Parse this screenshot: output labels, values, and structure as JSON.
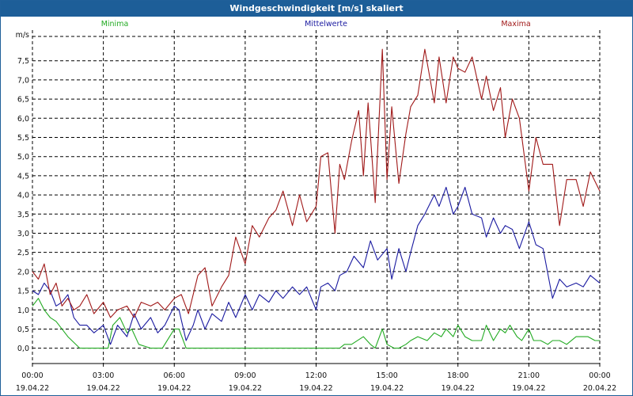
{
  "chart_data": {
    "type": "line",
    "title": "Windgeschwindigkeit [m/s] skaliert",
    "ylabel": "m/s",
    "xlabel": "",
    "ylim": [
      -0.4,
      8.3
    ],
    "y_ticks": [
      "7,5",
      "7,0",
      "6,5",
      "6,0",
      "5,5",
      "5,0",
      "4,5",
      "4,0",
      "3,5",
      "3,0",
      "2,5",
      "2,0",
      "1,5",
      "1,0",
      "0,5",
      "0,0"
    ],
    "y_tick_values": [
      7.5,
      7.0,
      6.5,
      6.0,
      5.5,
      5.0,
      4.5,
      4.0,
      3.5,
      3.0,
      2.5,
      2.0,
      1.5,
      1.0,
      0.5,
      0.0
    ],
    "xlim": [
      0,
      24
    ],
    "x_ticks": [
      {
        "time": "00:00",
        "date": "19.04.22",
        "hour": 0
      },
      {
        "time": "03:00",
        "date": "19.04.22",
        "hour": 3
      },
      {
        "time": "06:00",
        "date": "19.04.22",
        "hour": 6
      },
      {
        "time": "09:00",
        "date": "19.04.22",
        "hour": 9
      },
      {
        "time": "12:00",
        "date": "19.04.22",
        "hour": 12
      },
      {
        "time": "15:00",
        "date": "19.04.22",
        "hour": 15
      },
      {
        "time": "18:00",
        "date": "19.04.22",
        "hour": 18
      },
      {
        "time": "21:00",
        "date": "19.04.22",
        "hour": 21
      },
      {
        "time": "00:00",
        "date": "20.04.22",
        "hour": 24
      }
    ],
    "grid": true,
    "series": [
      {
        "name": "Minima",
        "color": "#22aa22",
        "x": [
          0,
          0.25,
          0.5,
          0.75,
          1,
          1.5,
          2,
          2.5,
          3,
          3.2,
          3.4,
          3.7,
          4,
          4.2,
          4.5,
          5,
          5.5,
          5.8,
          6,
          6.2,
          6.5,
          7,
          8,
          9,
          10,
          11,
          12,
          12.5,
          13,
          13.2,
          13.5,
          14,
          14.3,
          14.5,
          14.8,
          15,
          15.3,
          15.5,
          15.8,
          16,
          16.3,
          16.7,
          17,
          17.3,
          17.5,
          17.8,
          18,
          18.3,
          18.6,
          19,
          19.2,
          19.5,
          19.8,
          20,
          20.2,
          20.5,
          20.7,
          21,
          21.2,
          21.5,
          21.8,
          22,
          22.3,
          22.6,
          23,
          23.5,
          23.8,
          24
        ],
        "values": [
          1.1,
          1.3,
          1.0,
          0.8,
          0.7,
          0.3,
          0.0,
          0.0,
          0.0,
          0.0,
          0.6,
          0.8,
          0.4,
          0.5,
          0.1,
          0.0,
          0.0,
          0.3,
          0.5,
          0.5,
          0.0,
          0.0,
          0.0,
          0.0,
          0.0,
          0.0,
          0.0,
          0.0,
          0.0,
          0.1,
          0.1,
          0.3,
          0.1,
          0.0,
          0.5,
          0.1,
          0.0,
          0.0,
          0.1,
          0.2,
          0.3,
          0.2,
          0.4,
          0.3,
          0.5,
          0.3,
          0.6,
          0.3,
          0.2,
          0.2,
          0.6,
          0.2,
          0.5,
          0.4,
          0.6,
          0.3,
          0.2,
          0.5,
          0.2,
          0.2,
          0.1,
          0.2,
          0.2,
          0.1,
          0.3,
          0.3,
          0.2,
          0.2
        ]
      },
      {
        "name": "Mittelwerte",
        "color": "#1a1aa0",
        "x": [
          0,
          0.25,
          0.5,
          0.75,
          1,
          1.25,
          1.5,
          1.75,
          2,
          2.3,
          2.6,
          3,
          3.3,
          3.6,
          4,
          4.3,
          4.6,
          5,
          5.3,
          5.6,
          6,
          6.2,
          6.5,
          6.8,
          7,
          7.3,
          7.6,
          8,
          8.3,
          8.6,
          9,
          9.3,
          9.6,
          10,
          10.3,
          10.6,
          11,
          11.3,
          11.6,
          12,
          12.2,
          12.5,
          12.8,
          13,
          13.3,
          13.6,
          14,
          14.3,
          14.6,
          15,
          15.2,
          15.5,
          15.8,
          16,
          16.3,
          16.6,
          17,
          17.2,
          17.5,
          17.8,
          18,
          18.3,
          18.6,
          19,
          19.2,
          19.5,
          19.8,
          20,
          20.3,
          20.6,
          21,
          21.3,
          21.6,
          22,
          22.3,
          22.6,
          23,
          23.3,
          23.6,
          24
        ],
        "values": [
          1.5,
          1.4,
          1.7,
          1.5,
          1.1,
          1.2,
          1.4,
          0.8,
          0.6,
          0.6,
          0.4,
          0.6,
          0.1,
          0.6,
          0.3,
          0.9,
          0.5,
          0.8,
          0.4,
          0.6,
          1.1,
          1.0,
          0.2,
          0.6,
          1.0,
          0.5,
          0.9,
          0.7,
          1.2,
          0.8,
          1.4,
          1.0,
          1.4,
          1.2,
          1.5,
          1.3,
          1.6,
          1.4,
          1.6,
          1.0,
          1.6,
          1.7,
          1.5,
          1.9,
          2.0,
          2.4,
          2.1,
          2.8,
          2.3,
          2.6,
          1.8,
          2.6,
          2.0,
          2.5,
          3.2,
          3.5,
          4.0,
          3.7,
          4.2,
          3.5,
          3.7,
          4.2,
          3.5,
          3.4,
          2.9,
          3.4,
          3.0,
          3.2,
          3.1,
          2.6,
          3.3,
          2.7,
          2.6,
          1.3,
          1.8,
          1.6,
          1.7,
          1.6,
          1.9,
          1.7
        ]
      },
      {
        "name": "Maxima",
        "color": "#a01818",
        "x": [
          0,
          0.25,
          0.5,
          0.75,
          1,
          1.25,
          1.5,
          1.75,
          2,
          2.3,
          2.6,
          3,
          3.3,
          3.6,
          4,
          4.3,
          4.6,
          5,
          5.3,
          5.6,
          6,
          6.3,
          6.6,
          7,
          7.3,
          7.6,
          8,
          8.3,
          8.6,
          9,
          9.3,
          9.6,
          10,
          10.3,
          10.6,
          11,
          11.3,
          11.6,
          12,
          12.2,
          12.5,
          12.8,
          13,
          13.2,
          13.5,
          13.8,
          14,
          14.2,
          14.5,
          14.8,
          15,
          15.2,
          15.5,
          15.8,
          16,
          16.3,
          16.6,
          17,
          17.2,
          17.5,
          17.8,
          18,
          18.3,
          18.6,
          19,
          19.2,
          19.5,
          19.8,
          20,
          20.3,
          20.6,
          21,
          21.3,
          21.6,
          22,
          22.3,
          22.6,
          23,
          23.3,
          23.6,
          24
        ],
        "values": [
          2.0,
          1.8,
          2.2,
          1.4,
          1.7,
          1.1,
          1.3,
          1.0,
          1.1,
          1.4,
          0.9,
          1.2,
          0.8,
          1.0,
          1.1,
          0.8,
          1.2,
          1.1,
          1.2,
          1.0,
          1.3,
          1.4,
          0.9,
          1.9,
          2.1,
          1.1,
          1.6,
          1.9,
          2.9,
          2.2,
          3.2,
          2.9,
          3.4,
          3.6,
          4.1,
          3.2,
          4.0,
          3.3,
          3.7,
          5.0,
          5.1,
          3.0,
          4.8,
          4.4,
          5.4,
          6.2,
          4.5,
          6.4,
          3.8,
          7.8,
          4.4,
          6.3,
          4.3,
          5.6,
          6.3,
          6.6,
          7.8,
          6.4,
          7.6,
          6.4,
          7.6,
          7.3,
          7.2,
          7.6,
          6.5,
          7.1,
          6.2,
          6.8,
          5.5,
          6.5,
          6.0,
          4.1,
          5.5,
          4.8,
          4.8,
          3.2,
          4.4,
          4.4,
          3.7,
          4.6,
          4.1
        ]
      }
    ]
  }
}
